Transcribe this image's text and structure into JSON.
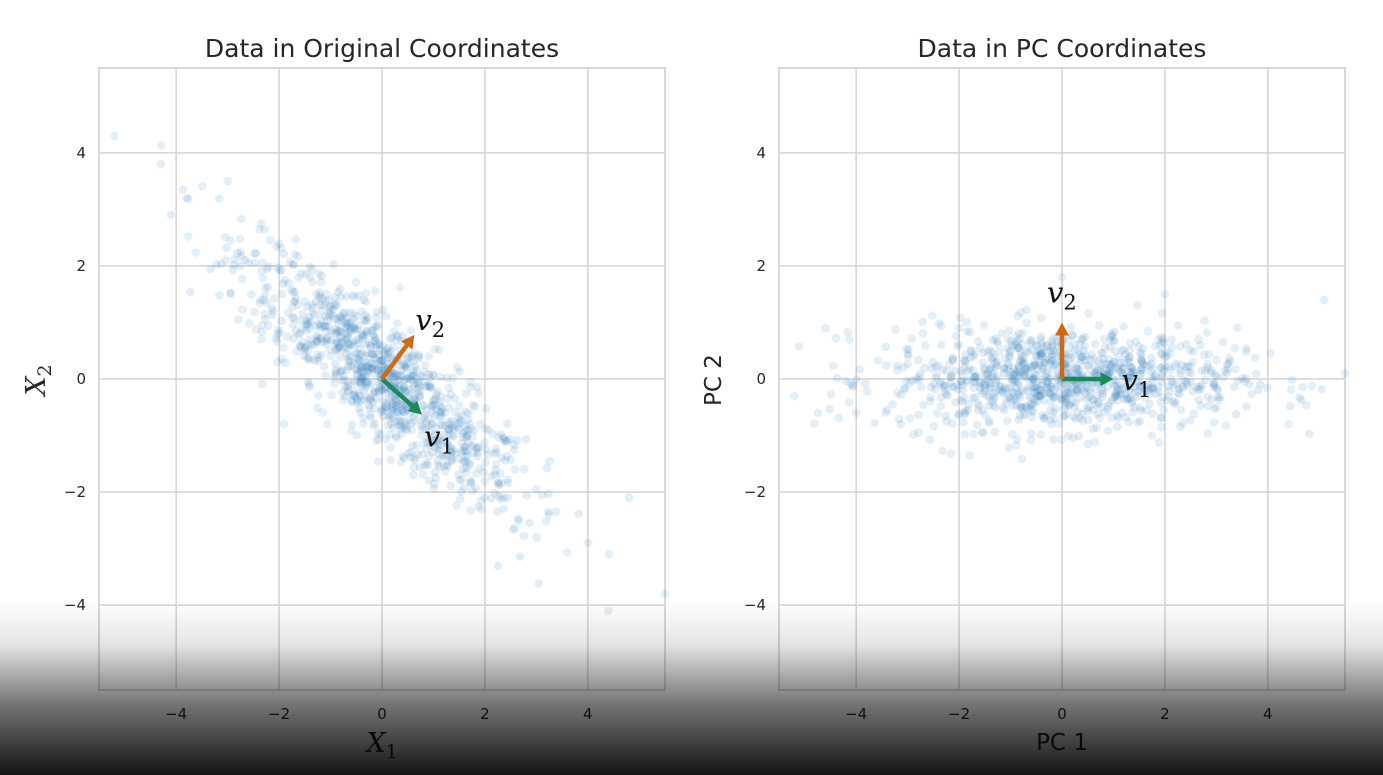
{
  "chart_data": [
    {
      "type": "scatter",
      "title": "Data in Original Coordinates",
      "xlabel": "X",
      "xlabel_sub": "1",
      "ylabel": "X",
      "ylabel_sub": "2",
      "xlim": [
        -5.5,
        5.5
      ],
      "ylim": [
        -5.5,
        5.5
      ],
      "xticks": [
        -4,
        -2,
        0,
        2,
        4
      ],
      "yticks": [
        -4,
        -2,
        0,
        2,
        4
      ],
      "xtick_labels": [
        "−4",
        "−2",
        "0",
        "2",
        "4"
      ],
      "ytick_labels": [
        "−4",
        "−2",
        "0",
        "2",
        "4"
      ],
      "grid": true,
      "point_color": "#1f77b4",
      "point_alpha": 0.12,
      "n_points": 1000,
      "distribution": {
        "mean": [
          0,
          0
        ],
        "pc1_direction": [
          0.78,
          -0.63
        ],
        "pc1_std": 1.7,
        "pc2_std": 0.45
      },
      "points_sample": [
        [
          -5.2,
          4.3
        ],
        [
          -4.3,
          3.8
        ],
        [
          -4.1,
          2.9
        ],
        [
          -3.0,
          3.5
        ],
        [
          -2.0,
          2.4
        ],
        [
          -1.0,
          1.2
        ],
        [
          0.0,
          0.1
        ],
        [
          1.0,
          -1.1
        ],
        [
          2.0,
          -2.1
        ],
        [
          3.0,
          -2.8
        ],
        [
          4.0,
          -2.9
        ],
        [
          4.4,
          -4.1
        ],
        [
          4.8,
          -2.1
        ],
        [
          5.5,
          -3.8
        ]
      ],
      "vectors": [
        {
          "name": "v",
          "sub": "1",
          "from": [
            0,
            0
          ],
          "to": [
            0.78,
            -0.63
          ],
          "color": "#1a8a5a"
        },
        {
          "name": "v",
          "sub": "2",
          "from": [
            0,
            0
          ],
          "to": [
            0.63,
            0.78
          ],
          "color": "#cc6a15"
        }
      ]
    },
    {
      "type": "scatter",
      "title": "Data in PC Coordinates",
      "xlabel": "PC 1",
      "ylabel": "PC 2",
      "xlim": [
        -5.5,
        5.5
      ],
      "ylim": [
        -5.5,
        5.5
      ],
      "xticks": [
        -4,
        -2,
        0,
        2,
        4
      ],
      "yticks": [
        -4,
        -2,
        0,
        2,
        4
      ],
      "xtick_labels": [
        "−4",
        "−2",
        "0",
        "2",
        "4"
      ],
      "ytick_labels": [
        "−4",
        "−2",
        "0",
        "2",
        "4"
      ],
      "grid": true,
      "point_color": "#1f77b4",
      "point_alpha": 0.12,
      "n_points": 1000,
      "distribution": {
        "mean": [
          0,
          0
        ],
        "pc1_std": 1.7,
        "pc2_std": 0.45
      },
      "points_sample": [
        [
          -5.2,
          -0.3
        ],
        [
          -4.6,
          0.9
        ],
        [
          -4.0,
          -0.6
        ],
        [
          -2.0,
          0.9
        ],
        [
          0.0,
          1.8
        ],
        [
          1.0,
          0.3
        ],
        [
          2.0,
          1.5
        ],
        [
          3.0,
          -0.5
        ],
        [
          4.4,
          -0.8
        ],
        [
          5.1,
          1.4
        ],
        [
          5.5,
          0.1
        ]
      ],
      "vectors": [
        {
          "name": "v",
          "sub": "1",
          "from": [
            0,
            0
          ],
          "to": [
            1.0,
            0.0
          ],
          "color": "#1a8a5a"
        },
        {
          "name": "v",
          "sub": "2",
          "from": [
            0,
            0
          ],
          "to": [
            0.0,
            1.0
          ],
          "color": "#cc6a15"
        }
      ]
    }
  ]
}
